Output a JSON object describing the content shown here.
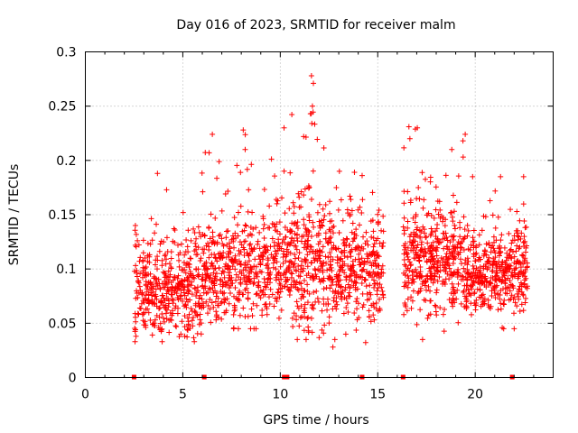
{
  "chart_data": {
    "type": "scatter",
    "title": "Day 016 of 2023, SRMTID for receiver malm",
    "xlabel": "GPS time / hours",
    "ylabel": "SRMTID / TECUs",
    "xlim": [
      0,
      24
    ],
    "ylim": [
      0,
      0.3
    ],
    "xticks": [
      0,
      5,
      10,
      15,
      20
    ],
    "xtick_labels": [
      "0",
      "5",
      "10",
      "15",
      "20"
    ],
    "yticks": [
      0,
      0.05,
      0.1,
      0.15,
      0.2,
      0.25,
      0.3
    ],
    "ytick_labels": [
      "0",
      "0.05",
      "0.1",
      "0.15",
      "0.2",
      "0.25",
      "0.3"
    ],
    "grid": true,
    "marker": "plus",
    "color": "#ff0000",
    "segments": [
      {
        "x_start": 2.5,
        "x_end": 6.0,
        "y_median": 0.085,
        "y_spread": 0.035,
        "y_min": 0.033,
        "y_max": 0.19,
        "count": 420
      },
      {
        "x_start": 6.0,
        "x_end": 10.5,
        "y_median": 0.1,
        "y_spread": 0.035,
        "y_min": 0.045,
        "y_max": 0.23,
        "count": 520
      },
      {
        "x_start": 10.5,
        "x_end": 12.5,
        "y_median": 0.105,
        "y_spread": 0.045,
        "y_min": 0.035,
        "y_max": 0.278,
        "count": 260
      },
      {
        "x_start": 12.5,
        "x_end": 15.3,
        "y_median": 0.1,
        "y_spread": 0.035,
        "y_min": 0.028,
        "y_max": 0.19,
        "count": 330
      },
      {
        "x_start": 16.3,
        "x_end": 19.5,
        "y_median": 0.11,
        "y_spread": 0.035,
        "y_min": 0.035,
        "y_max": 0.23,
        "count": 420
      },
      {
        "x_start": 19.5,
        "x_end": 22.7,
        "y_median": 0.1,
        "y_spread": 0.03,
        "y_min": 0.045,
        "y_max": 0.185,
        "count": 400
      }
    ],
    "peaks": [
      {
        "x": 11.6,
        "y": 0.278
      },
      {
        "x": 11.7,
        "y": 0.271
      },
      {
        "x": 11.65,
        "y": 0.25
      },
      {
        "x": 11.55,
        "y": 0.243
      },
      {
        "x": 8.1,
        "y": 0.228
      },
      {
        "x": 8.2,
        "y": 0.21
      },
      {
        "x": 16.6,
        "y": 0.231
      },
      {
        "x": 16.65,
        "y": 0.22
      },
      {
        "x": 6.35,
        "y": 0.207
      },
      {
        "x": 18.8,
        "y": 0.21
      },
      {
        "x": 3.7,
        "y": 0.188
      },
      {
        "x": 14.2,
        "y": 0.186
      },
      {
        "x": 21.3,
        "y": 0.185
      },
      {
        "x": 11.2,
        "y": 0.222
      }
    ],
    "lows": [
      {
        "x": 2.55,
        "y": 0.033
      },
      {
        "x": 2.6,
        "y": 0.038
      },
      {
        "x": 12.7,
        "y": 0.028
      },
      {
        "x": 12.8,
        "y": 0.035
      },
      {
        "x": 17.3,
        "y": 0.035
      },
      {
        "x": 4.9,
        "y": 0.04
      },
      {
        "x": 5.1,
        "y": 0.038
      },
      {
        "x": 22.0,
        "y": 0.045
      }
    ],
    "baseline_markers": [
      {
        "x": 2.5,
        "y": 0
      },
      {
        "x": 6.1,
        "y": 0
      },
      {
        "x": 10.2,
        "y": 0
      },
      {
        "x": 10.35,
        "y": 0
      },
      {
        "x": 14.2,
        "y": 0
      },
      {
        "x": 16.3,
        "y": 0
      },
      {
        "x": 21.9,
        "y": 0
      }
    ]
  }
}
